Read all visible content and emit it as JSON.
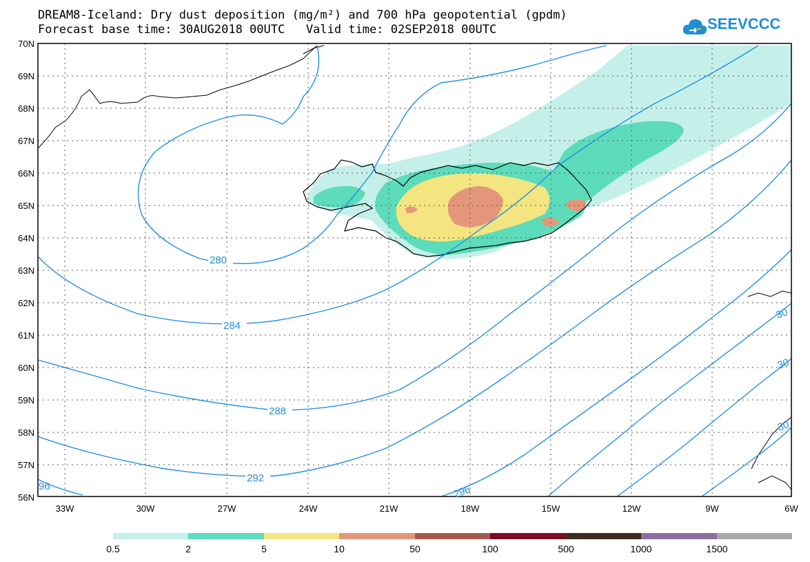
{
  "title": {
    "line1": "DREAM8-Iceland: Dry dust deposition (mg/m²) and 700 hPa geopotential (gpdm)",
    "line2": "Forecast base time: 30AUG2018 00UTC   Valid time: 02SEP2018 00UTC"
  },
  "logo": {
    "text": "SEEVCCC",
    "icon": "cloud-icon",
    "color": "#1f8fd6"
  },
  "axes": {
    "lat_labels": [
      "70N",
      "69N",
      "68N",
      "67N",
      "66N",
      "65N",
      "64N",
      "63N",
      "62N",
      "61N",
      "60N",
      "59N",
      "58N",
      "57N",
      "56N"
    ],
    "lon_labels": [
      "33W",
      "30W",
      "27W",
      "24W",
      "21W",
      "18W",
      "15W",
      "12W",
      "9W",
      "6W"
    ]
  },
  "contours": {
    "color": "#1f8fe0",
    "labels": [
      "280",
      "284",
      "288",
      "292",
      "296",
      "96",
      "30",
      "30",
      "30"
    ]
  },
  "legend": {
    "colors": [
      "#c5f0ea",
      "#5ddcbb",
      "#f4e580",
      "#e4967a",
      "#a85a4e",
      "#7d0a24",
      "#3d2a20",
      "#8c6fa0",
      "#a9a9a9"
    ],
    "labels": [
      "0.5",
      "2",
      "5",
      "10",
      "50",
      "100",
      "500",
      "1000",
      "1500"
    ]
  }
}
